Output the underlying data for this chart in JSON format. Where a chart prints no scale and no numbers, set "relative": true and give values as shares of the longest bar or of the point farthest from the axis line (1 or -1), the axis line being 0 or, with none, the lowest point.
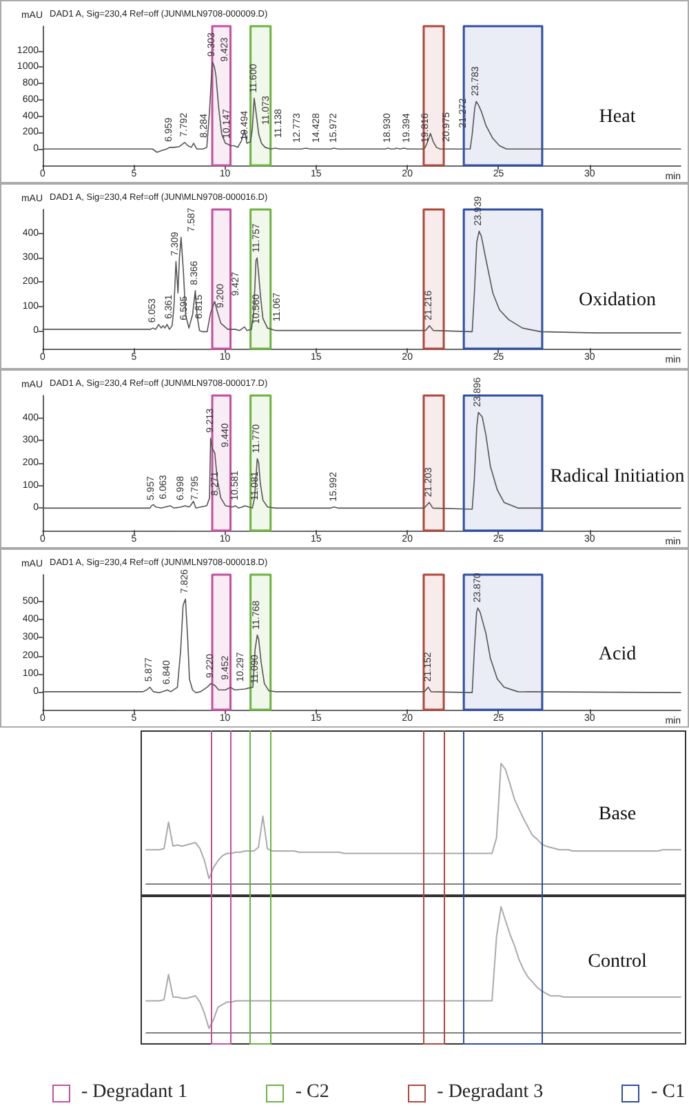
{
  "chart_data": [
    {
      "type": "line",
      "title": "Heat",
      "subtitle": "DAD1 A, Sig=230,4 Ref=off (JUN\\MLN9708-000009.D)",
      "xlabel": "min",
      "ylabel": "mAU",
      "color": "#555555",
      "marker": "none",
      "x": [
        0,
        6.02,
        6.27,
        6.52,
        6.8,
        6.96,
        7.2,
        7.5,
        7.79,
        7.97,
        8.15,
        8.28,
        8.45,
        8.8,
        9.0,
        9.15,
        9.3,
        9.36,
        9.42,
        9.5,
        9.65,
        9.82,
        10.02,
        10.15,
        10.3,
        10.49,
        10.7,
        10.9,
        11.07,
        11.2,
        11.4,
        11.5,
        11.6,
        11.7,
        11.85,
        12.0,
        12.2,
        12.5,
        12.77,
        13.0,
        14.2,
        14.43,
        14.7,
        15.8,
        15.97,
        16.2,
        18.8,
        18.93,
        19.1,
        19.3,
        19.39,
        19.6,
        19.82,
        20.0,
        20.9,
        20.98,
        21.1,
        21.27,
        21.42,
        21.6,
        21.8,
        23.45,
        23.56,
        23.7,
        23.78,
        23.9,
        24.06,
        24.31,
        24.69,
        25.06,
        25.44,
        35
      ],
      "values": [
        0,
        0,
        -40,
        -20,
        0,
        20,
        20,
        30,
        80,
        40,
        20,
        70,
        0,
        0,
        20,
        460,
        1060,
        1040,
        1000,
        900,
        510,
        180,
        70,
        60,
        40,
        40,
        20,
        100,
        230,
        70,
        90,
        250,
        620,
        450,
        180,
        70,
        20,
        0,
        10,
        0,
        0,
        10,
        0,
        0,
        10,
        0,
        0,
        10,
        0,
        0,
        10,
        0,
        10,
        0,
        0,
        20,
        80,
        190,
        90,
        20,
        0,
        0,
        180,
        500,
        580,
        540,
        460,
        290,
        130,
        40,
        0,
        0
      ],
      "xlim": [
        0,
        35
      ],
      "xticks": [
        0,
        5,
        10,
        15,
        20,
        25,
        30
      ],
      "ylim": [
        -200,
        1500
      ],
      "yticks": [
        0,
        200,
        400,
        600,
        800,
        1000,
        1200
      ],
      "annotations": [
        {
          "text": "6.959",
          "x": 6.959,
          "y": 20
        },
        {
          "text": "7.792",
          "x": 7.792,
          "y": 80
        },
        {
          "text": "8.284",
          "x": 8.284,
          "y": 70
        },
        {
          "text": "9.303",
          "x": 9.303,
          "y": 1060
        },
        {
          "text": "9.423",
          "x": 9.423,
          "y": 1000
        },
        {
          "text": "10.147",
          "x": 10.147,
          "y": 60
        },
        {
          "text": "10.494",
          "x": 10.494,
          "y": 40
        },
        {
          "text": "11.073",
          "x": 11.073,
          "y": 230
        },
        {
          "text": "11.138",
          "x": 11.138,
          "y": 70
        },
        {
          "text": "11.600",
          "x": 11.6,
          "y": 620
        },
        {
          "text": "12.773",
          "x": 12.773,
          "y": 10
        },
        {
          "text": "14.428",
          "x": 14.428,
          "y": 10
        },
        {
          "text": "15.972",
          "x": 15.972,
          "y": 10
        },
        {
          "text": "18.930",
          "x": 18.93,
          "y": 10
        },
        {
          "text": "19.394",
          "x": 19.394,
          "y": 10
        },
        {
          "text": "19.816",
          "x": 19.816,
          "y": 10
        },
        {
          "text": "20.975",
          "x": 20.975,
          "y": 20
        },
        {
          "text": "21.272",
          "x": 21.272,
          "y": 190
        },
        {
          "text": "23.783",
          "x": 23.783,
          "y": 580
        }
      ],
      "bands": [
        {
          "axis": "x",
          "from": 9.3,
          "to": 10.3,
          "color": "#c54f9e"
        },
        {
          "axis": "x",
          "from": 11.4,
          "to": 12.5,
          "color": "#6cb33f"
        },
        {
          "axis": "x",
          "from": 20.9,
          "to": 22.0,
          "color": "#b0473b"
        },
        {
          "axis": "x",
          "from": 23.1,
          "to": 27.4,
          "color": "#2f4ea2"
        }
      ]
    },
    {
      "type": "line",
      "title": "Oxidation",
      "subtitle": "DAD1 A, Sig=230,4 Ref=off (JUN\\MLN9708-000016.D)",
      "xlabel": "min",
      "ylabel": "mAU",
      "color": "#555555",
      "marker": "none",
      "x": [
        0,
        5.9,
        6.05,
        6.2,
        6.36,
        6.5,
        6.6,
        6.7,
        6.82,
        6.95,
        7.1,
        7.2,
        7.31,
        7.42,
        7.5,
        7.59,
        7.72,
        7.84,
        8.02,
        8.22,
        8.37,
        8.47,
        8.6,
        8.77,
        9.02,
        9.2,
        9.43,
        9.55,
        9.77,
        10.15,
        10.56,
        10.8,
        11.07,
        11.2,
        11.45,
        11.58,
        11.7,
        11.76,
        11.85,
        11.95,
        12.08,
        12.33,
        12.78,
        20.3,
        21.0,
        21.22,
        21.43,
        23.56,
        23.68,
        23.81,
        23.94,
        24.06,
        24.31,
        24.69,
        25.06,
        25.56,
        26.32,
        27.32,
        30.33,
        35
      ],
      "values": [
        5,
        5,
        10,
        5,
        25,
        10,
        20,
        10,
        25,
        5,
        20,
        100,
        285,
        155,
        300,
        385,
        240,
        65,
        10,
        65,
        165,
        60,
        0,
        -5,
        -5,
        70,
        120,
        85,
        30,
        5,
        5,
        0,
        15,
        0,
        5,
        80,
        290,
        300,
        230,
        140,
        50,
        10,
        0,
        0,
        0,
        20,
        0,
        -5,
        155,
        365,
        410,
        390,
        295,
        155,
        85,
        45,
        10,
        -5,
        -10,
        -10
      ],
      "xlim": [
        0,
        35
      ],
      "xticks": [
        0,
        5,
        10,
        15,
        20,
        25,
        30
      ],
      "ylim": [
        -75,
        500
      ],
      "yticks": [
        0,
        100,
        200,
        300,
        400
      ],
      "annotations": [
        {
          "text": "6.053",
          "x": 6.053,
          "y": 10
        },
        {
          "text": "6.361",
          "x": 6.361,
          "y": 25
        },
        {
          "text": "6.595",
          "x": 6.595,
          "y": 20
        },
        {
          "text": "6.815",
          "x": 6.815,
          "y": 25
        },
        {
          "text": "7.309",
          "x": 7.309,
          "y": 285
        },
        {
          "text": "7.587",
          "x": 7.587,
          "y": 385
        },
        {
          "text": "8.366",
          "x": 8.366,
          "y": 165
        },
        {
          "text": "9.200",
          "x": 9.2,
          "y": 70
        },
        {
          "text": "9.427",
          "x": 9.427,
          "y": 120
        },
        {
          "text": "10.560",
          "x": 10.56,
          "y": 5
        },
        {
          "text": "11.067",
          "x": 11.067,
          "y": 15
        },
        {
          "text": "11.757",
          "x": 11.757,
          "y": 300
        },
        {
          "text": "21.216",
          "x": 21.216,
          "y": 20
        },
        {
          "text": "23.939",
          "x": 23.939,
          "y": 410
        }
      ],
      "bands": [
        {
          "axis": "x",
          "from": 9.3,
          "to": 10.3,
          "color": "#c54f9e"
        },
        {
          "axis": "x",
          "from": 11.4,
          "to": 12.5,
          "color": "#6cb33f"
        },
        {
          "axis": "x",
          "from": 20.9,
          "to": 22.0,
          "color": "#b0473b"
        },
        {
          "axis": "x",
          "from": 23.1,
          "to": 27.4,
          "color": "#2f4ea2"
        }
      ]
    },
    {
      "type": "line",
      "title": "Radical Initiation",
      "subtitle": "DAD1 A, Sig=230,4 Ref=off (JUN\\MLN9708-000017.D)",
      "xlabel": "min",
      "ylabel": "mAU",
      "color": "#555555",
      "marker": "none",
      "x": [
        0,
        5.89,
        5.96,
        6.06,
        6.2,
        6.5,
        7.0,
        7.2,
        7.6,
        7.8,
        8.0,
        8.1,
        8.27,
        8.4,
        9.0,
        9.15,
        9.21,
        9.3,
        9.44,
        9.57,
        9.77,
        10.03,
        10.4,
        10.58,
        10.75,
        10.95,
        11.08,
        11.5,
        11.62,
        11.77,
        11.85,
        11.93,
        12.08,
        12.33,
        12.78,
        15.8,
        15.99,
        16.2,
        20.93,
        21.2,
        21.4,
        23.56,
        23.68,
        23.81,
        23.9,
        24.11,
        24.31,
        24.56,
        24.94,
        25.31,
        26.07,
        35
      ],
      "values": [
        0,
        0,
        10,
        15,
        5,
        0,
        10,
        0,
        5,
        10,
        5,
        10,
        30,
        0,
        10,
        45,
        310,
        265,
        245,
        130,
        45,
        10,
        5,
        10,
        0,
        5,
        10,
        0,
        45,
        220,
        200,
        115,
        35,
        5,
        0,
        0,
        5,
        0,
        0,
        25,
        0,
        -5,
        130,
        360,
        425,
        405,
        325,
        185,
        80,
        25,
        0,
        0
      ],
      "xlim": [
        0,
        35
      ],
      "xticks": [
        0,
        5,
        10,
        15,
        20,
        25,
        30
      ],
      "ylim": [
        -100,
        500
      ],
      "yticks": [
        0,
        100,
        200,
        300,
        400
      ],
      "annotations": [
        {
          "text": "5.957",
          "x": 5.957,
          "y": 10
        },
        {
          "text": "6.063",
          "x": 6.063,
          "y": 15
        },
        {
          "text": "6.998",
          "x": 6.998,
          "y": 10
        },
        {
          "text": "7.795",
          "x": 7.795,
          "y": 10
        },
        {
          "text": "8.271",
          "x": 8.271,
          "y": 30
        },
        {
          "text": "9.213",
          "x": 9.213,
          "y": 310
        },
        {
          "text": "9.440",
          "x": 9.44,
          "y": 245
        },
        {
          "text": "10.581",
          "x": 10.581,
          "y": 10
        },
        {
          "text": "11.081",
          "x": 11.081,
          "y": 10
        },
        {
          "text": "11.770",
          "x": 11.77,
          "y": 220
        },
        {
          "text": "15.992",
          "x": 15.992,
          "y": 5
        },
        {
          "text": "21.203",
          "x": 21.203,
          "y": 25
        },
        {
          "text": "23.896",
          "x": 23.896,
          "y": 425
        }
      ],
      "bands": [
        {
          "axis": "x",
          "from": 9.3,
          "to": 10.3,
          "color": "#c54f9e"
        },
        {
          "axis": "x",
          "from": 11.4,
          "to": 12.5,
          "color": "#6cb33f"
        },
        {
          "axis": "x",
          "from": 20.9,
          "to": 22.0,
          "color": "#b0473b"
        },
        {
          "axis": "x",
          "from": 23.1,
          "to": 27.4,
          "color": "#2f4ea2"
        }
      ]
    },
    {
      "type": "line",
      "title": "Acid",
      "subtitle": "DAD1 A, Sig=230,4 Ref=off (JUN\\MLN9708-000018.D)",
      "xlabel": "min",
      "ylabel": "mAU",
      "color": "#555555",
      "marker": "none",
      "legend": "bottom",
      "x": [
        0,
        5.5,
        5.7,
        5.88,
        6.07,
        6.39,
        6.72,
        6.84,
        7.02,
        7.39,
        7.57,
        7.7,
        7.83,
        7.95,
        8.05,
        8.22,
        8.4,
        8.65,
        9.02,
        9.22,
        9.35,
        9.45,
        9.65,
        10.03,
        10.3,
        10.53,
        11.09,
        11.28,
        11.53,
        11.65,
        11.77,
        11.85,
        11.98,
        12.16,
        12.41,
        12.78,
        20.93,
        21.15,
        21.3,
        23.56,
        23.68,
        23.8,
        23.87,
        24.0,
        24.31,
        24.56,
        24.94,
        25.31,
        26.07,
        35
      ],
      "values": [
        0,
        0,
        10,
        25,
        0,
        -5,
        5,
        10,
        0,
        25,
        235,
        480,
        515,
        300,
        70,
        10,
        -5,
        0,
        25,
        45,
        40,
        35,
        10,
        10,
        25,
        10,
        15,
        20,
        25,
        235,
        315,
        290,
        165,
        45,
        5,
        0,
        0,
        25,
        0,
        -5,
        235,
        440,
        465,
        440,
        325,
        185,
        70,
        25,
        0,
        -5
      ],
      "xlim": [
        0,
        35
      ],
      "xticks": [
        0,
        5,
        10,
        15,
        20,
        25,
        30
      ],
      "ylim": [
        -100,
        650
      ],
      "yticks": [
        0,
        100,
        200,
        300,
        400,
        500
      ],
      "annotations": [
        {
          "text": "5.877",
          "x": 5.877,
          "y": 25
        },
        {
          "text": "6.840",
          "x": 6.84,
          "y": 10
        },
        {
          "text": "7.826",
          "x": 7.826,
          "y": 515
        },
        {
          "text": "9.220",
          "x": 9.22,
          "y": 45
        },
        {
          "text": "9.452",
          "x": 9.452,
          "y": 35
        },
        {
          "text": "10.297",
          "x": 10.297,
          "y": 25
        },
        {
          "text": "11.090",
          "x": 11.09,
          "y": 15
        },
        {
          "text": "11.768",
          "x": 11.768,
          "y": 315
        },
        {
          "text": "21.152",
          "x": 21.152,
          "y": 25
        },
        {
          "text": "23.870",
          "x": 23.87,
          "y": 465
        }
      ],
      "bands": [
        {
          "axis": "x",
          "from": 9.3,
          "to": 10.3,
          "color": "#c54f9e",
          "label": "- Degradant 1"
        },
        {
          "axis": "x",
          "from": 11.4,
          "to": 12.5,
          "color": "#6cb33f",
          "label": "- C2"
        },
        {
          "axis": "x",
          "from": 20.9,
          "to": 22.0,
          "color": "#b0473b",
          "label": "- Degradant 3"
        },
        {
          "axis": "x",
          "from": 23.1,
          "to": 27.4,
          "color": "#2f4ea2",
          "label": "- C1"
        }
      ]
    },
    {
      "type": "line",
      "relative": true,
      "title": "Base",
      "color": "#aaaaaa",
      "marker": "none",
      "categories": [
        null,
        null,
        null,
        null,
        null,
        null,
        null,
        null,
        null,
        null,
        null,
        null,
        null,
        null,
        null,
        null,
        null,
        null,
        null,
        null,
        null,
        null,
        null,
        null,
        null,
        null,
        null,
        null,
        null,
        null,
        null,
        null,
        null,
        null,
        null,
        null,
        null,
        null,
        null,
        null,
        null,
        null,
        null,
        null,
        null,
        null,
        null,
        null,
        null,
        null,
        null,
        null,
        null,
        null,
        null,
        null,
        null,
        null,
        null,
        null,
        null,
        null,
        null,
        null,
        null,
        null,
        null,
        null,
        null,
        null,
        null,
        null,
        null,
        null,
        null,
        null,
        null,
        null,
        null,
        null,
        null,
        null,
        null,
        null,
        null,
        null,
        null,
        null,
        null,
        null,
        null,
        null,
        null,
        null,
        null,
        null,
        null,
        null,
        null,
        null,
        null,
        null,
        null,
        null,
        null,
        null,
        null,
        null,
        null,
        null,
        null,
        null,
        null,
        null,
        null,
        null,
        null,
        null,
        null,
        null
      ],
      "values": [
        0.28,
        0.28,
        0.28,
        0.28,
        0.29,
        0.51,
        0.31,
        0.32,
        0.31,
        0.32,
        0.33,
        0.34,
        0.29,
        0.19,
        0.04,
        0.13,
        0.19,
        0.23,
        0.25,
        0.25,
        0.26,
        0.26,
        0.27,
        0.27,
        0.27,
        0.3,
        0.56,
        0.29,
        0.27,
        0.27,
        0.27,
        0.27,
        0.27,
        0.27,
        0.26,
        0.26,
        0.26,
        0.26,
        0.26,
        0.26,
        0.26,
        0.26,
        0.26,
        0.26,
        0.25,
        0.25,
        0.25,
        0.25,
        0.25,
        0.25,
        0.25,
        0.25,
        0.25,
        0.25,
        0.25,
        0.25,
        0.25,
        0.25,
        0.25,
        0.25,
        0.25,
        0.25,
        0.25,
        0.25,
        0.25,
        0.25,
        0.25,
        0.25,
        0.25,
        0.25,
        0.25,
        0.25,
        0.25,
        0.25,
        0.25,
        0.25,
        0.25,
        0.25,
        0.38,
        1,
        0.95,
        0.83,
        0.7,
        0.62,
        0.54,
        0.47,
        0.4,
        0.37,
        0.33,
        0.31,
        0.3,
        0.29,
        0.28,
        0.28,
        0.28,
        0.27,
        0.27,
        0.27,
        0.27,
        0.27,
        0.27,
        0.27,
        0.27,
        0.27,
        0.27,
        0.27,
        0.27,
        0.27,
        0.27,
        0.27,
        0.27,
        0.27,
        0.27,
        0.27,
        0.27,
        0.28,
        0.28,
        0.28,
        0.28,
        0.28
      ]
    },
    {
      "type": "line",
      "relative": true,
      "title": "Control",
      "color": "#aaaaaa",
      "marker": "none",
      "categories": [
        null,
        null,
        null,
        null,
        null,
        null,
        null,
        null,
        null,
        null,
        null,
        null,
        null,
        null,
        null,
        null,
        null,
        null,
        null,
        null,
        null,
        null,
        null,
        null,
        null,
        null,
        null,
        null,
        null,
        null,
        null,
        null,
        null,
        null,
        null,
        null,
        null,
        null,
        null,
        null,
        null,
        null,
        null,
        null,
        null,
        null,
        null,
        null,
        null,
        null,
        null,
        null,
        null,
        null,
        null,
        null,
        null,
        null,
        null,
        null,
        null,
        null,
        null,
        null,
        null,
        null,
        null,
        null,
        null,
        null,
        null,
        null,
        null,
        null,
        null,
        null,
        null,
        null,
        null,
        null,
        null,
        null,
        null,
        null,
        null,
        null,
        null,
        null,
        null,
        null,
        null,
        null,
        null,
        null,
        null,
        null,
        null,
        null,
        null,
        null,
        null,
        null,
        null,
        null,
        null,
        null,
        null,
        null,
        null,
        null,
        null,
        null,
        null,
        null,
        null,
        null,
        null,
        null,
        null,
        null
      ],
      "values": [
        0.25,
        0.25,
        0.25,
        0.25,
        0.26,
        0.46,
        0.28,
        0.28,
        0.27,
        0.27,
        0.28,
        0.29,
        0.24,
        0.15,
        0.03,
        0.1,
        0.2,
        0.22,
        0.24,
        0.24,
        0.25,
        0.25,
        0.25,
        0.25,
        0.25,
        0.25,
        0.25,
        0.25,
        0.25,
        0.25,
        0.25,
        0.25,
        0.25,
        0.25,
        0.25,
        0.25,
        0.25,
        0.25,
        0.25,
        0.25,
        0.25,
        0.25,
        0.25,
        0.25,
        0.25,
        0.25,
        0.25,
        0.25,
        0.25,
        0.25,
        0.25,
        0.25,
        0.25,
        0.25,
        0.25,
        0.25,
        0.25,
        0.25,
        0.25,
        0.25,
        0.25,
        0.25,
        0.25,
        0.25,
        0.25,
        0.25,
        0.25,
        0.25,
        0.25,
        0.25,
        0.25,
        0.25,
        0.25,
        0.25,
        0.25,
        0.25,
        0.25,
        0.25,
        0.76,
        1,
        0.89,
        0.78,
        0.69,
        0.58,
        0.5,
        0.44,
        0.4,
        0.36,
        0.33,
        0.31,
        0.29,
        0.29,
        0.29,
        0.28,
        0.28,
        0.28,
        0.28,
        0.28,
        0.28,
        0.28,
        0.28,
        0.28,
        0.28,
        0.28,
        0.28,
        0.28,
        0.28,
        0.28,
        0.28,
        0.28,
        0.28,
        0.28,
        0.28,
        0.28,
        0.28,
        0.28,
        0.28,
        0.28,
        0.28,
        0.28
      ]
    }
  ]
}
